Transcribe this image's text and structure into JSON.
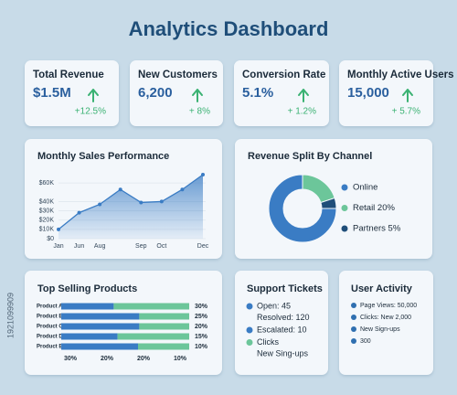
{
  "title": "Analytics Dashboard",
  "kpis": [
    {
      "label": "Total Revenue",
      "value": "$1.5M",
      "change": "+12.5%"
    },
    {
      "label": "New Customers",
      "value": "6,200",
      "change": "+ 8%"
    },
    {
      "label": "Conversion Rate",
      "value": "5.1%",
      "change": "+ 1.2%"
    },
    {
      "label": "Monthly Active Users",
      "value": "15,000",
      "change": "+ 5.7%"
    }
  ],
  "chart_data": [
    {
      "type": "line",
      "title": "Monthly Sales Performance",
      "categories": [
        "Jan",
        "Jun",
        "Aug",
        null,
        "Sep",
        "Oct",
        null,
        "Dec"
      ],
      "values": [
        10000,
        28000,
        37000,
        53000,
        39000,
        40000,
        53000,
        69000
      ],
      "color": "#3a7cc4",
      "ylim": [
        0,
        70000
      ],
      "yticks": [
        {
          "value": 0,
          "label": "$0"
        },
        {
          "value": 10000,
          "label": "$10K"
        },
        {
          "value": 20000,
          "label": "$20K"
        },
        {
          "value": 30000,
          "label": "$30K"
        },
        {
          "value": 40000,
          "label": "$40K"
        },
        {
          "value": 60000,
          "label": "$60K"
        }
      ],
      "grid": true
    },
    {
      "type": "pie",
      "title": "Revenue Split By Channel",
      "categories": [
        "Online",
        "Retail 20%",
        "Partners 5%"
      ],
      "values": [
        75,
        20,
        5
      ],
      "colors": [
        "#3a7cc4",
        "#6cc69a",
        "#1f4e79"
      ],
      "donut": true
    },
    {
      "type": "bar",
      "orientation": "horizontal",
      "stacked": true,
      "title": "Top Selling Products",
      "categories": [
        "Product A",
        "Product B",
        "Product C",
        "Product D",
        "Product E"
      ],
      "series": [
        {
          "color": "#3a7cc4",
          "values": [
            41,
            61,
            61,
            44,
            60
          ]
        },
        {
          "color": "#6cc69a",
          "values": [
            59,
            39,
            39,
            56,
            40
          ]
        }
      ],
      "xlim": [
        0,
        100
      ],
      "share_labels": [
        "30%",
        "25%",
        "20%",
        "15%",
        "10%"
      ],
      "axis_labels": [
        "30%",
        "20%",
        "20%",
        "10%"
      ]
    }
  ],
  "support_tickets": {
    "title": "Support Tickets",
    "items": [
      {
        "text": "Open: 45",
        "color": "#3a7cc4",
        "dot": true
      },
      {
        "text": "Resolved: 120",
        "color": "#3a7cc4",
        "dot": false
      },
      {
        "text": "Escalated: 10",
        "color": "#3a7cc4",
        "dot": true
      },
      {
        "text": "Clicks",
        "color": "#6cc69a",
        "dot": true
      },
      {
        "text": "New Sing-ups",
        "color": "#6cc69a",
        "dot": false
      }
    ]
  },
  "user_activity": {
    "title": "User Activity",
    "items": [
      "Page Views: 50,000",
      "Clicks: New 2,000",
      "New Sign-ups",
      "300"
    ],
    "color": "#2f6fb0"
  },
  "watermark": "1921099909"
}
